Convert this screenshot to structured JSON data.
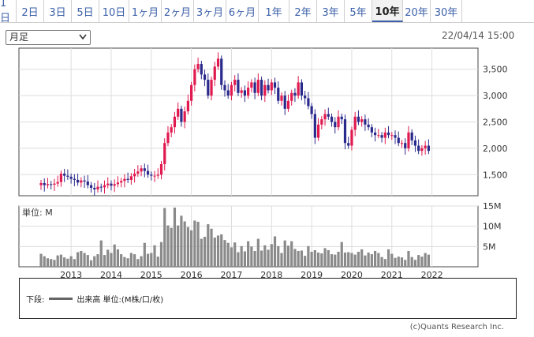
{
  "tabs": [
    "1日",
    "2日",
    "3日",
    "5日",
    "10日",
    "1ヶ月",
    "2ヶ月",
    "3ヶ月",
    "6ヶ月",
    "1年",
    "2年",
    "3年",
    "5年",
    "10年",
    "20年",
    "30年"
  ],
  "active_tab": "10年",
  "period_select": "月足",
  "datetime": "22/04/14 15:00",
  "volume_panel_label": "単位: M",
  "legend": {
    "prefix": "下段:",
    "label": "出来高 単位:(M株/口/枚)"
  },
  "copyright": "(c)Quants Research Inc.",
  "colors": {
    "up": "#e0194f",
    "down": "#2a2a8c",
    "volume": "#8a8a8a"
  },
  "chart_data": [
    {
      "type": "candlestick",
      "price_ticks": [
        "1,500",
        "2,000",
        "2,500",
        "3,000",
        "3,500"
      ],
      "ylim": [
        1100,
        3900
      ],
      "x_tick_labels": [
        "2013",
        "2014",
        "2015",
        "2016",
        "2017",
        "2018",
        "2019",
        "2020",
        "2021",
        "2022"
      ],
      "x_start": "2012-04",
      "monthly_close": [
        1340,
        1300,
        1320,
        1310,
        1330,
        1360,
        1520,
        1480,
        1460,
        1420,
        1400,
        1350,
        1390,
        1370,
        1300,
        1250,
        1220,
        1270,
        1260,
        1300,
        1330,
        1290,
        1320,
        1350,
        1380,
        1420,
        1400,
        1470,
        1520,
        1560,
        1620,
        1570,
        1500,
        1480,
        1480,
        1500,
        1700,
        2100,
        2300,
        2400,
        2600,
        2750,
        2500,
        2700,
        2900,
        3200,
        3500,
        3600,
        3400,
        3300,
        3000,
        3300,
        3550,
        3700,
        3200,
        3100,
        3000,
        3200,
        3300,
        3050,
        3100,
        3000,
        3150,
        3250,
        3050,
        3300,
        3000,
        3200,
        3100,
        3250,
        3150,
        2900,
        3000,
        2750,
        2900,
        3050,
        3000,
        3250,
        3000,
        2950,
        2800,
        2650,
        2200,
        2450,
        2550,
        2650,
        2600,
        2500,
        2400,
        2600,
        2550,
        2100,
        2050,
        2350,
        2600,
        2500,
        2550,
        2450,
        2400,
        2300,
        2250,
        2250,
        2200,
        2300,
        2250,
        2250,
        2200,
        2100,
        2100,
        2000,
        2300,
        2150,
        2050,
        1950,
        2000,
        2050,
        1950
      ],
      "volume_ticks": [
        "5M",
        "10M",
        "15M"
      ],
      "volume_ylim": [
        0,
        15
      ],
      "monthly_volume": [
        3.2,
        2.6,
        2.1,
        1.9,
        1.7,
        2.8,
        3.0,
        2.3,
        2.0,
        2.6,
        1.9,
        3.6,
        3.9,
        3.4,
        2.9,
        1.6,
        2.6,
        3.1,
        6.5,
        2.9,
        4.2,
        3.4,
        5.5,
        4.3,
        3.1,
        2.4,
        2.1,
        3.4,
        3.1,
        1.9,
        2.6,
        5.9,
        3.2,
        3.4,
        5.3,
        2.5,
        6.1,
        14.5,
        10.2,
        9.6,
        14.6,
        10.2,
        12.6,
        11.2,
        9.8,
        9.0,
        11.4,
        11.1,
        6.9,
        7.4,
        10.5,
        9.4,
        7.2,
        7.7,
        8.0,
        6.6,
        5.9,
        4.8,
        6.0,
        3.6,
        5.1,
        3.8,
        6.3,
        5.0,
        3.9,
        6.9,
        4.0,
        5.3,
        4.2,
        5.6,
        7.5,
        5.1,
        3.4,
        6.5,
        5.2,
        6.3,
        4.4,
        3.9,
        4.0,
        2.7,
        5.1,
        3.7,
        4.1,
        3.5,
        3.3,
        4.6,
        4.1,
        3.1,
        3.0,
        3.7,
        6.1,
        3.5,
        3.6,
        3.4,
        3.0,
        3.7,
        4.3,
        2.8,
        3.5,
        3.1,
        3.9,
        3.4,
        2.4,
        1.9,
        4.3,
        3.2,
        2.2,
        2.5,
        2.3,
        1.7,
        3.9,
        2.4,
        1.7,
        2.9,
        2.5,
        3.4,
        3.0
      ]
    }
  ]
}
